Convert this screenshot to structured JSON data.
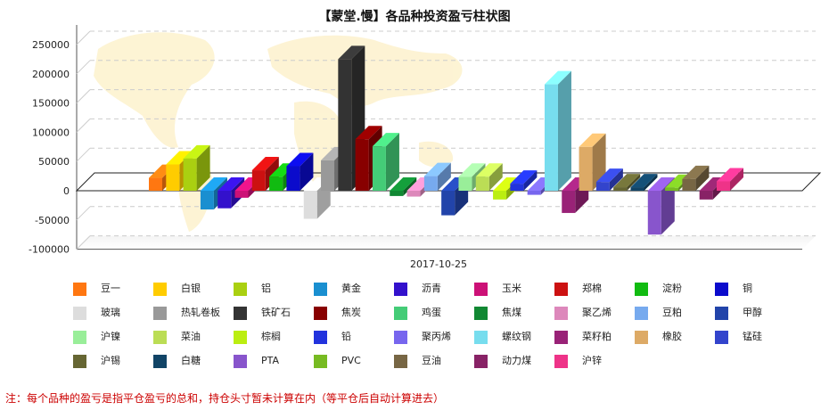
{
  "chart_data": {
    "type": "bar",
    "title": "【蒙堂.慢】各品种投资盈亏柱状图",
    "categories": [
      "2017-10-25"
    ],
    "ylim": [
      -100000,
      250000
    ],
    "yticks": [
      250000,
      200000,
      150000,
      100000,
      50000,
      0,
      -50000,
      -100000
    ],
    "grid": true,
    "legend_position": "bottom",
    "series": [
      {
        "name": "豆一",
        "value": 22000,
        "color": "#ff7711"
      },
      {
        "name": "白银",
        "value": 45000,
        "color": "#ffcc00"
      },
      {
        "name": "铝",
        "value": 55000,
        "color": "#aad011"
      },
      {
        "name": "黄金",
        "value": -32000,
        "color": "#1a8fd0"
      },
      {
        "name": "沥青",
        "value": -30000,
        "color": "#3311cc"
      },
      {
        "name": "玉米",
        "value": -12000,
        "color": "#cc1177"
      },
      {
        "name": "郑棉",
        "value": 35000,
        "color": "#cc1111"
      },
      {
        "name": "淀粉",
        "value": 24000,
        "color": "#11bb11"
      },
      {
        "name": "铜",
        "value": 42000,
        "color": "#0b0bcc"
      },
      {
        "name": "玻璃",
        "value": -48000,
        "color": "#dddddd"
      },
      {
        "name": "热轧卷板",
        "value": 52000,
        "color": "#999999"
      },
      {
        "name": "铁矿石",
        "value": 225000,
        "color": "#333333"
      },
      {
        "name": "焦炭",
        "value": 88000,
        "color": "#880000"
      },
      {
        "name": "鸡蛋",
        "value": 76000,
        "color": "#44cc77"
      },
      {
        "name": "焦煤",
        "value": -9000,
        "color": "#118833"
      },
      {
        "name": "聚乙烯",
        "value": -10000,
        "color": "#dd88bb"
      },
      {
        "name": "豆粕",
        "value": 25000,
        "color": "#77aaee"
      },
      {
        "name": "甲醇",
        "value": -42000,
        "color": "#2244aa"
      },
      {
        "name": "沪镍",
        "value": 24000,
        "color": "#99ee99"
      },
      {
        "name": "菜油",
        "value": 24000,
        "color": "#bbdd55"
      },
      {
        "name": "棕榈",
        "value": -15000,
        "color": "#bbee11"
      },
      {
        "name": "铅",
        "value": 12000,
        "color": "#2233dd"
      },
      {
        "name": "聚丙烯",
        "value": -7000,
        "color": "#7766ee"
      },
      {
        "name": "螺纹钢",
        "value": 182000,
        "color": "#77ddee"
      },
      {
        "name": "菜籽粕",
        "value": -38000,
        "color": "#992277"
      },
      {
        "name": "橡胶",
        "value": 75000,
        "color": "#ddaa66"
      },
      {
        "name": "锰硅",
        "value": 15000,
        "color": "#3344cc"
      },
      {
        "name": "沪锡",
        "value": 6000,
        "color": "#666633"
      },
      {
        "name": "白糖",
        "value": 6000,
        "color": "#114466"
      },
      {
        "name": "PTA",
        "value": -75000,
        "color": "#8855cc"
      },
      {
        "name": "PVC",
        "value": 5000,
        "color": "#77bb22"
      },
      {
        "name": "豆油",
        "value": 20000,
        "color": "#776644"
      },
      {
        "name": "动力煤",
        "value": -15000,
        "color": "#882266"
      },
      {
        "name": "沪锌",
        "value": 16000,
        "color": "#ee3388"
      }
    ]
  },
  "footer": {
    "note": "注：每个品种的盈亏是指平仓盈亏的总和，持仓头寸暂未计算在内（等平仓后自动计算进去）"
  }
}
